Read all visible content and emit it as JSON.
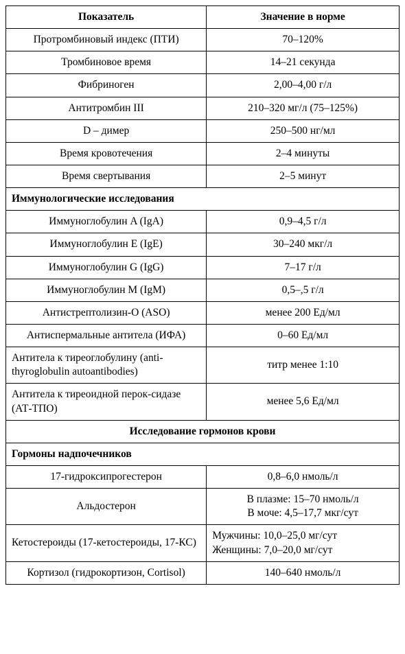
{
  "header": {
    "param": "Показатель",
    "value": "Значение в норме"
  },
  "rows": [
    {
      "type": "data",
      "paramClass": "param",
      "valClass": "val",
      "param": "Протромбиновый индекс (ПТИ)",
      "value": "70–120%"
    },
    {
      "type": "data",
      "paramClass": "param",
      "valClass": "val",
      "param": "Тромбиновое время",
      "value": "14–21 секунда"
    },
    {
      "type": "data",
      "paramClass": "param",
      "valClass": "val",
      "param": "Фибриноген",
      "value": "2,00–4,00 г/л"
    },
    {
      "type": "data",
      "paramClass": "param",
      "valClass": "val",
      "param": "Антитромбин III",
      "value": "210–320 мг/л (75–125%)"
    },
    {
      "type": "data",
      "paramClass": "param",
      "valClass": "val",
      "param": "D – димер",
      "value": "250–500 нг/мл"
    },
    {
      "type": "data",
      "paramClass": "param",
      "valClass": "val",
      "param": "Время кровотечения",
      "value": "2–4 минуты"
    },
    {
      "type": "data",
      "paramClass": "param",
      "valClass": "val",
      "param": "Время свертывания",
      "value": "2–5 минут"
    },
    {
      "type": "section",
      "class": "section",
      "label": "Иммунологические исследования"
    },
    {
      "type": "data",
      "paramClass": "param",
      "valClass": "val",
      "param": "Иммуноглобулин A (IgA)",
      "value": "0,9–4,5 г/л"
    },
    {
      "type": "data",
      "paramClass": "param",
      "valClass": "val",
      "param": "Иммуноглобулин E (IgE)",
      "value": "30–240 мкг/л"
    },
    {
      "type": "data",
      "paramClass": "param",
      "valClass": "val",
      "param": "Иммуноглобулин G (IgG)",
      "value": "7–17 г/л"
    },
    {
      "type": "data",
      "paramClass": "param",
      "valClass": "val",
      "param": "Иммуноглобулин M (IgM)",
      "value": "0,5–,5 г/л"
    },
    {
      "type": "data",
      "paramClass": "param",
      "valClass": "val",
      "param": "Антистрептолизин-О (ASO)",
      "value": "менее 200 Ед/мл"
    },
    {
      "type": "data",
      "paramClass": "param",
      "valClass": "val",
      "param": "Антиспермальные антитела (ИФА)",
      "value": "0–60 Ед/мл"
    },
    {
      "type": "data",
      "paramClass": "param-left",
      "valClass": "val",
      "param": "Антитела к тиреоглобулину (anti-thyroglobulin autoantibodies)",
      "value": "титр менее 1:10"
    },
    {
      "type": "data",
      "paramClass": "param-left",
      "valClass": "val",
      "param": "Антитела к тиреоидной перок-сидазе (АТ-ТПО)",
      "value": "менее 5,6 Ед/мл"
    },
    {
      "type": "section",
      "class": "section-center",
      "label": "Исследование гормонов крови"
    },
    {
      "type": "section",
      "class": "section",
      "label": "Гормоны надпочечников"
    },
    {
      "type": "data",
      "paramClass": "param",
      "valClass": "val",
      "param": "17-гидроксипрогестерон",
      "value": "0,8–6,0 нмоль/л"
    },
    {
      "type": "data",
      "paramClass": "param",
      "valClass": "val",
      "param": "Альдостерон",
      "value": "В плазме: 15–70 нмоль/л\nВ моче: 4,5–17,7 мкг/сут"
    },
    {
      "type": "data",
      "paramClass": "param-left",
      "valClass": "val-left",
      "param": "Кетостероиды (17-кетостероиды, 17-КС)",
      "value": "Мужчины: 10,0–25,0 мг/сут\nЖенщины: 7,0–20,0 мг/сут"
    },
    {
      "type": "data",
      "paramClass": "param",
      "valClass": "val",
      "param": "Кортизол (гидрокортизон, Cortisol)",
      "value": "140–640 нмоль/л"
    }
  ]
}
